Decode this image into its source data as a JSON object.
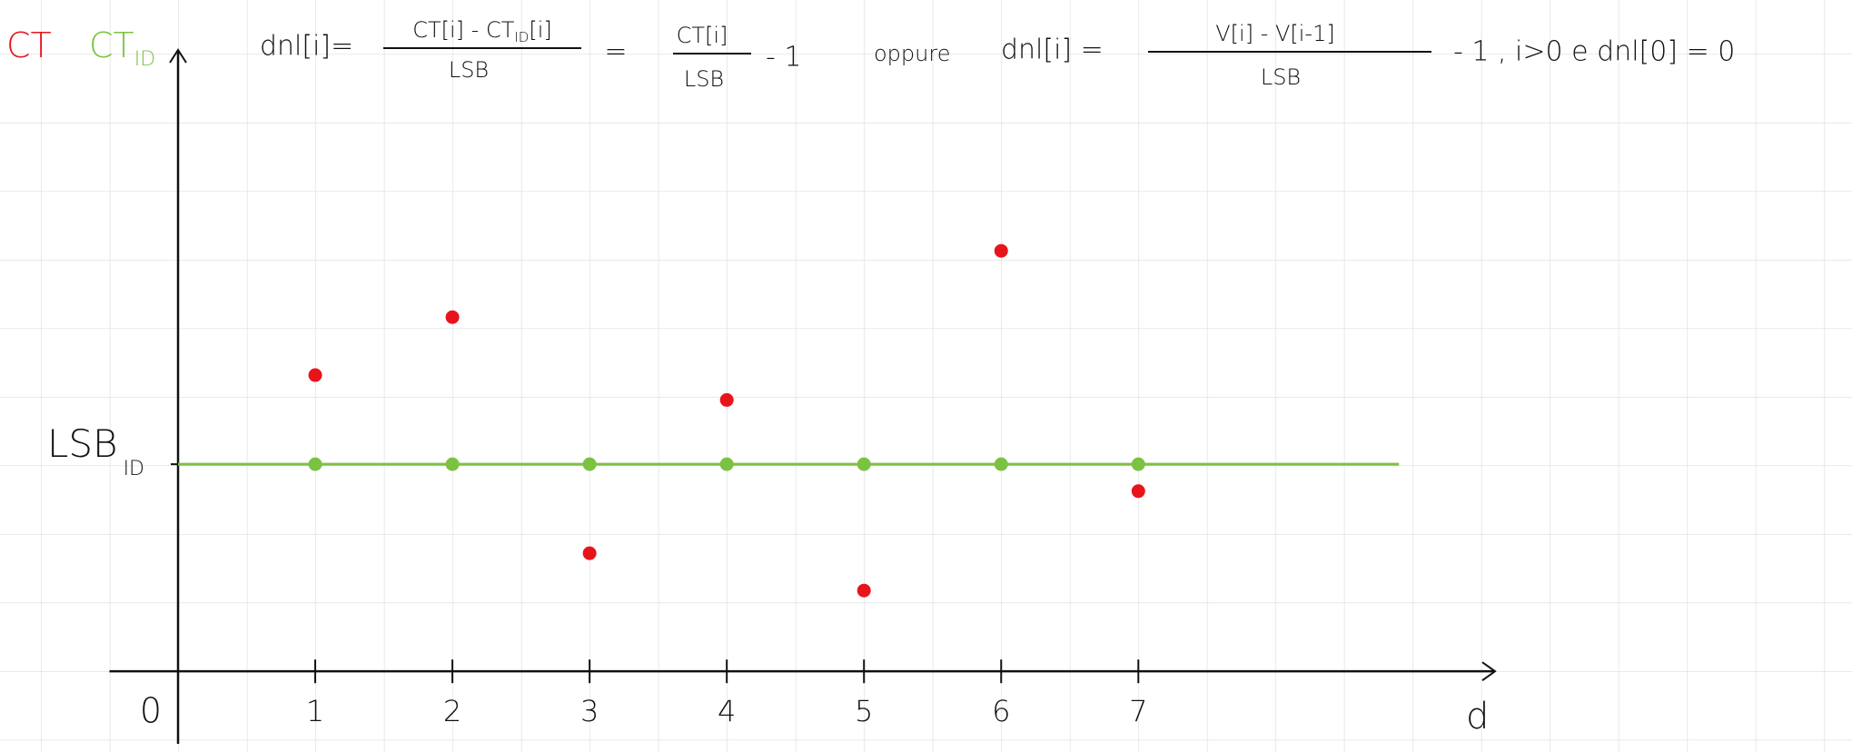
{
  "chart_data": {
    "type": "scatter",
    "x": [
      1,
      2,
      3,
      4,
      5,
      6,
      7
    ],
    "series": [
      {
        "name": "CT",
        "color": "#e8141c",
        "values": [
          1.43,
          1.71,
          0.57,
          1.31,
          0.39,
          2.03,
          0.87
        ]
      },
      {
        "name": "CT",
        "name_subscript": "ID",
        "color": "#7cc242",
        "values": [
          1,
          1,
          1,
          1,
          1,
          1,
          1
        ]
      }
    ],
    "xlim": [
      -0.5,
      9.6
    ],
    "ylim": [
      -0.35,
      3.0
    ],
    "xticks": [
      0,
      1,
      2,
      3,
      4,
      5,
      6,
      7
    ],
    "yticks": [
      {
        "value": 1,
        "label": "LSB",
        "subscript": "ID"
      }
    ],
    "xlabel": "d"
  },
  "formula": {
    "lhs1": "dnl[i]=",
    "frac1_num": [
      "CT[i] - CT",
      "ID",
      "[i]"
    ],
    "frac1_den": "LSB",
    "eq": "=",
    "frac2_num": "CT[i]",
    "frac2_den": "LSB",
    "minus1": "- 1",
    "or": "oppure",
    "lhs2": "dnl[i] =",
    "frac3_num": "V[i] - V[i-1]",
    "frac3_den": "LSB",
    "tail": "- 1 , i>0  e  dnl[0] = 0"
  }
}
